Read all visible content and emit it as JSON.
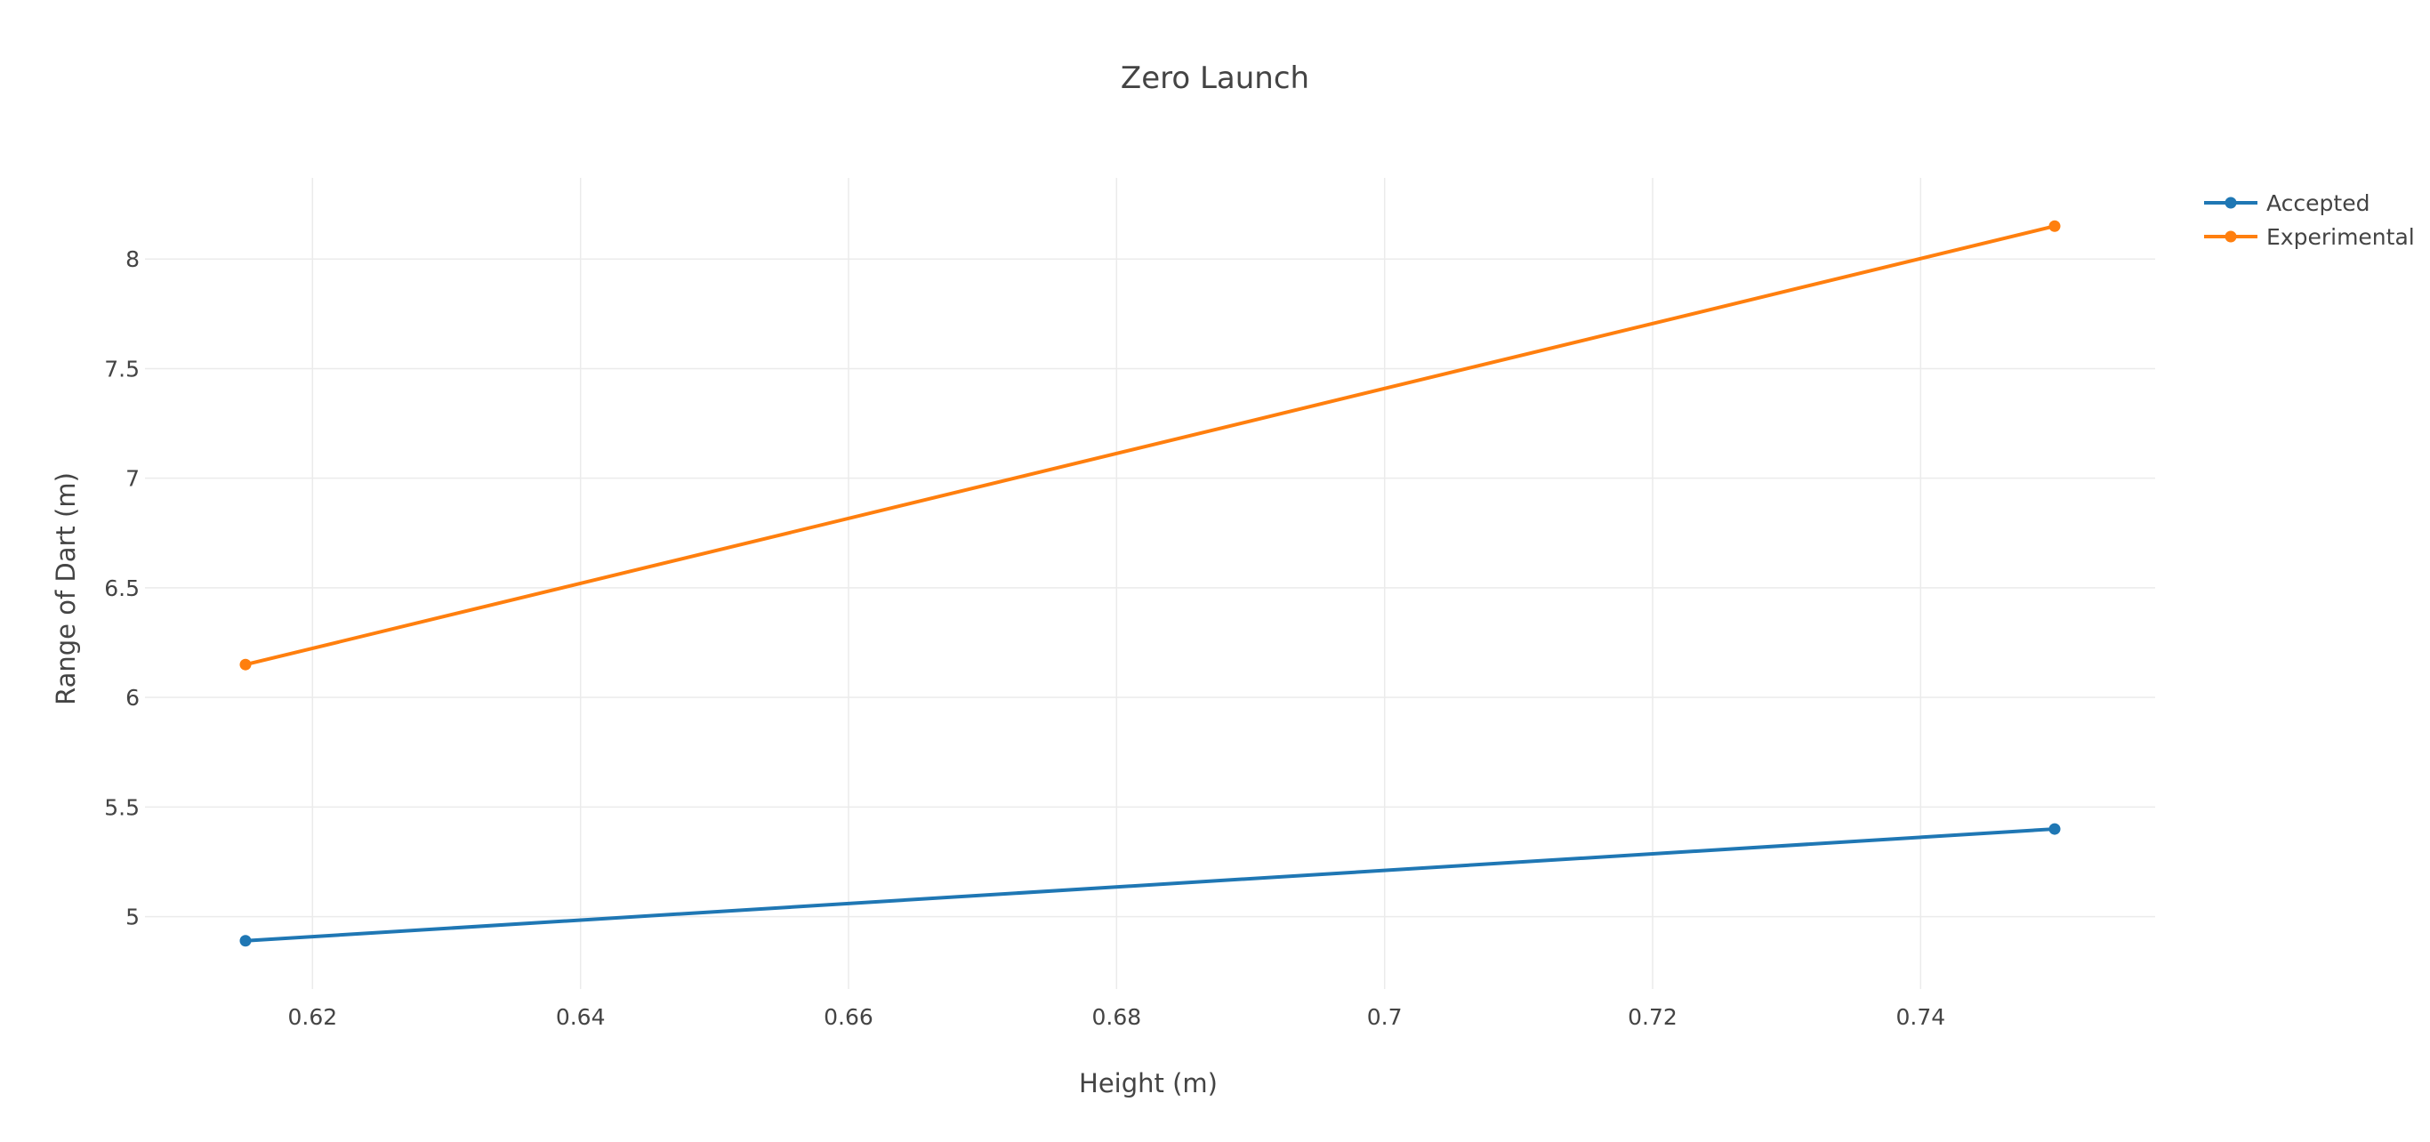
{
  "chart_data": {
    "type": "line",
    "title": "Zero Launch",
    "xlabel": "Height (m)",
    "ylabel": "Range of Dart (m)",
    "xlim": [
      0.6075,
      0.7575
    ],
    "ylim": [
      4.67,
      8.37
    ],
    "grid": true,
    "legend_position": "top-right",
    "x_ticks": [
      0.62,
      0.64,
      0.66,
      0.68,
      0.7,
      0.72,
      0.74
    ],
    "x_tick_labels": [
      "0.62",
      "0.64",
      "0.66",
      "0.68",
      "0.7",
      "0.72",
      "0.74"
    ],
    "y_ticks": [
      5,
      5.5,
      6,
      6.5,
      7,
      7.5,
      8
    ],
    "y_tick_labels": [
      "5",
      "5.5",
      "6",
      "6.5",
      "7",
      "7.5",
      "8"
    ],
    "series": [
      {
        "name": "Accepted",
        "color": "#1f77b4",
        "x": [
          0.615,
          0.75
        ],
        "y": [
          4.89,
          5.4
        ]
      },
      {
        "name": "Experimental",
        "color": "#ff7f0e",
        "x": [
          0.615,
          0.75
        ],
        "y": [
          6.15,
          8.15
        ]
      }
    ]
  }
}
